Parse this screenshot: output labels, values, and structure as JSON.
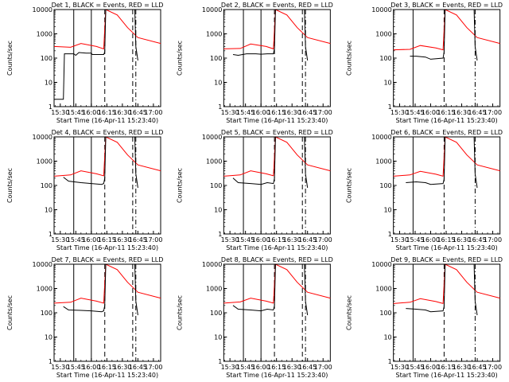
{
  "chart_data": {
    "type": "line",
    "layout": "3x3 grid",
    "y_scale": "log",
    "ylim": [
      1,
      10000
    ],
    "y_ticks": [
      "1",
      "10",
      "100",
      "1000",
      "10000"
    ],
    "ylabel": "Counts/sec",
    "x_range": [
      "15:24",
      "17:07"
    ],
    "x_ticks": [
      "15:30",
      "15:45",
      "16:00",
      "16:15",
      "16:30",
      "16:45",
      "17:00"
    ],
    "xlabel": "Start Time (16-Apr-11 15:23:40)",
    "series_colors": {
      "events": "#000000",
      "lld": "#ff0000"
    },
    "panels": [
      {
        "title": "Det 1, BLACK = Events, RED = LLD",
        "solid_lines": [
          "15:43",
          "16:00"
        ],
        "dashed_lines": [
          "16:13",
          "16:40"
        ],
        "dashdot_lines": [
          "16:43"
        ],
        "events": [
          [
            "15:24",
            2
          ],
          [
            "15:33",
            2
          ],
          [
            "15:34",
            150
          ],
          [
            "15:43",
            150
          ],
          [
            "15:45",
            130
          ],
          [
            "15:48",
            170
          ],
          [
            "15:55",
            160
          ],
          [
            "16:00",
            160
          ],
          [
            "16:01",
            140
          ],
          [
            "16:12",
            140
          ],
          [
            "16:13",
            180
          ],
          [
            "16:14",
            10000
          ],
          [
            "16:40",
            10000
          ],
          [
            "16:42",
            10000
          ],
          [
            "16:43",
            300
          ],
          [
            "16:45",
            80
          ]
        ],
        "lld": [
          [
            "15:24",
            300
          ],
          [
            "15:40",
            280
          ],
          [
            "15:50",
            400
          ],
          [
            "16:05",
            300
          ],
          [
            "16:12",
            240
          ],
          [
            "16:14",
            10000
          ],
          [
            "16:25",
            6000
          ],
          [
            "16:35",
            1800
          ],
          [
            "16:45",
            700
          ],
          [
            "17:07",
            400
          ]
        ]
      },
      {
        "title": "Det 2, BLACK = Events, RED = LLD",
        "solid_lines": [
          "15:43",
          "16:00"
        ],
        "dashed_lines": [
          "16:13",
          "16:40"
        ],
        "dashdot_lines": [
          "16:43"
        ],
        "events": [
          [
            "15:33",
            140
          ],
          [
            "15:38",
            130
          ],
          [
            "15:46",
            150
          ],
          [
            "15:55",
            150
          ],
          [
            "16:00",
            145
          ],
          [
            "16:06",
            150
          ],
          [
            "16:12",
            150
          ],
          [
            "16:13",
            250
          ],
          [
            "16:14",
            10000
          ],
          [
            "16:42",
            10000
          ],
          [
            "16:43",
            300
          ],
          [
            "16:45",
            80
          ]
        ],
        "lld": [
          [
            "15:24",
            240
          ],
          [
            "15:40",
            250
          ],
          [
            "15:50",
            380
          ],
          [
            "16:05",
            300
          ],
          [
            "16:12",
            240
          ],
          [
            "16:14",
            10000
          ],
          [
            "16:25",
            6000
          ],
          [
            "16:35",
            1800
          ],
          [
            "16:45",
            700
          ],
          [
            "17:07",
            400
          ]
        ]
      },
      {
        "title": "Det 3, BLACK = Events, RED = LLD",
        "solid_lines": [
          "15:43"
        ],
        "dashed_lines": [
          "16:13"
        ],
        "dashdot_lines": [
          "16:43"
        ],
        "events": [
          [
            "15:40",
            120
          ],
          [
            "15:46",
            120
          ],
          [
            "15:55",
            110
          ],
          [
            "16:00",
            90
          ],
          [
            "16:12",
            100
          ],
          [
            "16:13",
            180
          ],
          [
            "16:14",
            10000
          ],
          [
            "16:42",
            10000
          ],
          [
            "16:43",
            300
          ],
          [
            "16:45",
            80
          ]
        ],
        "lld": [
          [
            "15:24",
            220
          ],
          [
            "15:40",
            230
          ],
          [
            "15:50",
            330
          ],
          [
            "16:05",
            260
          ],
          [
            "16:12",
            220
          ],
          [
            "16:14",
            10000
          ],
          [
            "16:25",
            6000
          ],
          [
            "16:35",
            1800
          ],
          [
            "16:45",
            700
          ],
          [
            "17:07",
            400
          ]
        ]
      },
      {
        "title": "Det 4, BLACK = Events, RED = LLD",
        "solid_lines": [
          "15:43",
          "16:00"
        ],
        "dashed_lines": [
          "16:13",
          "16:40"
        ],
        "dashdot_lines": [
          "16:43"
        ],
        "events": [
          [
            "15:33",
            220
          ],
          [
            "15:38",
            150
          ],
          [
            "15:50",
            130
          ],
          [
            "16:00",
            120
          ],
          [
            "16:10",
            110
          ],
          [
            "16:12",
            120
          ],
          [
            "16:13",
            200
          ],
          [
            "16:14",
            10000
          ],
          [
            "16:42",
            10000
          ],
          [
            "16:43",
            300
          ],
          [
            "16:45",
            80
          ]
        ],
        "lld": [
          [
            "15:24",
            240
          ],
          [
            "15:40",
            270
          ],
          [
            "15:50",
            400
          ],
          [
            "16:05",
            300
          ],
          [
            "16:12",
            250
          ],
          [
            "16:14",
            10000
          ],
          [
            "16:25",
            6000
          ],
          [
            "16:35",
            1800
          ],
          [
            "16:45",
            700
          ],
          [
            "17:07",
            400
          ]
        ]
      },
      {
        "title": "Det 5, BLACK = Events, RED = LLD",
        "solid_lines": [
          "15:43",
          "16:00"
        ],
        "dashed_lines": [
          "16:13",
          "16:40"
        ],
        "dashdot_lines": [
          "16:43"
        ],
        "events": [
          [
            "15:33",
            200
          ],
          [
            "15:38",
            130
          ],
          [
            "15:50",
            120
          ],
          [
            "16:00",
            110
          ],
          [
            "16:06",
            130
          ],
          [
            "16:12",
            120
          ],
          [
            "16:13",
            200
          ],
          [
            "16:14",
            10000
          ],
          [
            "16:42",
            10000
          ],
          [
            "16:43",
            300
          ],
          [
            "16:45",
            80
          ]
        ],
        "lld": [
          [
            "15:24",
            240
          ],
          [
            "15:40",
            270
          ],
          [
            "15:50",
            400
          ],
          [
            "16:05",
            300
          ],
          [
            "16:12",
            250
          ],
          [
            "16:14",
            10000
          ],
          [
            "16:25",
            6000
          ],
          [
            "16:35",
            1800
          ],
          [
            "16:45",
            700
          ],
          [
            "17:07",
            400
          ]
        ]
      },
      {
        "title": "Det 6, BLACK = Events, RED = LLD",
        "solid_lines": [
          "15:43"
        ],
        "dashed_lines": [
          "16:13"
        ],
        "dashdot_lines": [
          "16:43"
        ],
        "events": [
          [
            "15:36",
            130
          ],
          [
            "15:46",
            140
          ],
          [
            "15:55",
            130
          ],
          [
            "16:00",
            110
          ],
          [
            "16:12",
            120
          ],
          [
            "16:13",
            180
          ],
          [
            "16:14",
            10000
          ],
          [
            "16:42",
            10000
          ],
          [
            "16:43",
            300
          ],
          [
            "16:45",
            80
          ]
        ],
        "lld": [
          [
            "15:24",
            240
          ],
          [
            "15:40",
            270
          ],
          [
            "15:50",
            380
          ],
          [
            "16:05",
            290
          ],
          [
            "16:12",
            240
          ],
          [
            "16:14",
            10000
          ],
          [
            "16:25",
            6000
          ],
          [
            "16:35",
            1800
          ],
          [
            "16:45",
            700
          ],
          [
            "17:07",
            400
          ]
        ]
      },
      {
        "title": "Det 7, BLACK = Events, RED = LLD",
        "solid_lines": [
          "15:43",
          "16:00"
        ],
        "dashed_lines": [
          "16:13",
          "16:40"
        ],
        "dashdot_lines": [
          "16:43"
        ],
        "events": [
          [
            "15:33",
            180
          ],
          [
            "15:38",
            130
          ],
          [
            "15:50",
            125
          ],
          [
            "16:00",
            120
          ],
          [
            "16:10",
            110
          ],
          [
            "16:12",
            120
          ],
          [
            "16:13",
            200
          ],
          [
            "16:14",
            10000
          ],
          [
            "16:42",
            10000
          ],
          [
            "16:43",
            300
          ],
          [
            "16:45",
            80
          ]
        ],
        "lld": [
          [
            "15:24",
            250
          ],
          [
            "15:40",
            270
          ],
          [
            "15:50",
            400
          ],
          [
            "16:05",
            300
          ],
          [
            "16:12",
            250
          ],
          [
            "16:14",
            10000
          ],
          [
            "16:25",
            6000
          ],
          [
            "16:35",
            1800
          ],
          [
            "16:45",
            700
          ],
          [
            "17:07",
            400
          ]
        ]
      },
      {
        "title": "Det 8, BLACK = Events, RED = LLD",
        "solid_lines": [
          "15:43",
          "16:00"
        ],
        "dashed_lines": [
          "16:13",
          "16:40"
        ],
        "dashdot_lines": [
          "16:43"
        ],
        "events": [
          [
            "15:33",
            200
          ],
          [
            "15:38",
            140
          ],
          [
            "15:50",
            130
          ],
          [
            "16:00",
            120
          ],
          [
            "16:06",
            140
          ],
          [
            "16:12",
            130
          ],
          [
            "16:13",
            200
          ],
          [
            "16:14",
            10000
          ],
          [
            "16:42",
            10000
          ],
          [
            "16:43",
            300
          ],
          [
            "16:45",
            80
          ]
        ],
        "lld": [
          [
            "15:24",
            250
          ],
          [
            "15:40",
            280
          ],
          [
            "15:50",
            400
          ],
          [
            "16:05",
            300
          ],
          [
            "16:12",
            250
          ],
          [
            "16:14",
            10000
          ],
          [
            "16:25",
            6000
          ],
          [
            "16:35",
            1800
          ],
          [
            "16:45",
            700
          ],
          [
            "17:07",
            400
          ]
        ]
      },
      {
        "title": "Det 9, BLACK = Events, RED = LLD",
        "solid_lines": [
          "15:43"
        ],
        "dashed_lines": [
          "16:13"
        ],
        "dashdot_lines": [
          "16:43"
        ],
        "events": [
          [
            "15:36",
            150
          ],
          [
            "15:46",
            140
          ],
          [
            "15:55",
            130
          ],
          [
            "16:00",
            110
          ],
          [
            "16:12",
            120
          ],
          [
            "16:13",
            180
          ],
          [
            "16:14",
            10000
          ],
          [
            "16:42",
            10000
          ],
          [
            "16:43",
            300
          ],
          [
            "16:45",
            80
          ]
        ],
        "lld": [
          [
            "15:24",
            240
          ],
          [
            "15:40",
            270
          ],
          [
            "15:50",
            380
          ],
          [
            "16:05",
            290
          ],
          [
            "16:12",
            240
          ],
          [
            "16:14",
            10000
          ],
          [
            "16:25",
            6000
          ],
          [
            "16:35",
            1800
          ],
          [
            "16:45",
            700
          ],
          [
            "17:07",
            400
          ]
        ]
      }
    ]
  }
}
